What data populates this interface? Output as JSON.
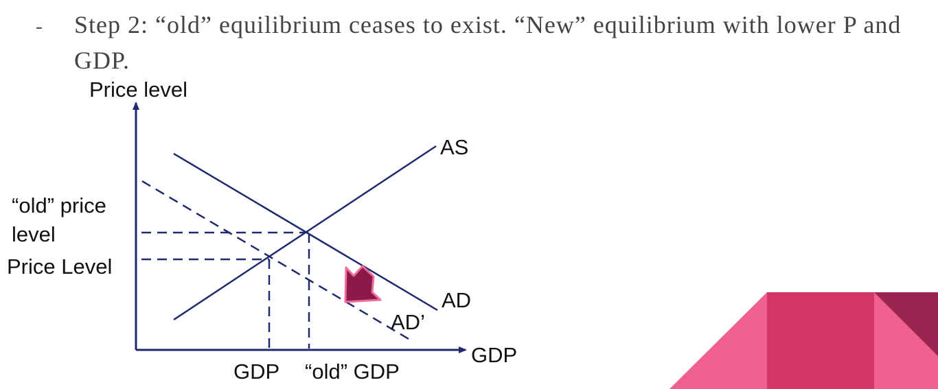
{
  "slide": {
    "bullet_marker": "-",
    "bullet_text": "Step 2: “old” equilibrium ceases to exist. “New” equilibrium with lower P and GDP."
  },
  "diagram": {
    "y_axis_label": "Price level",
    "x_axis_label": "GDP",
    "curves": {
      "as": "AS",
      "ad": "AD",
      "ad_new": "AD’"
    },
    "y_levels": {
      "old_line1": "“old” price",
      "old_line2": "level",
      "new": "Price Level"
    },
    "x_levels": {
      "new": "GDP",
      "old": "“old” GDP"
    },
    "colors": {
      "lines": "#1f2a6e",
      "shift_arrow_fill": "#8b1a4a",
      "shift_arrow_outline": "#f06a9a"
    },
    "shift_arrow_icon": "down-left-arrow-icon"
  },
  "decoration": {
    "colors": {
      "pink_light": "#ef5f8f",
      "pink_mid": "#d33566",
      "maroon": "#9a2550"
    }
  }
}
